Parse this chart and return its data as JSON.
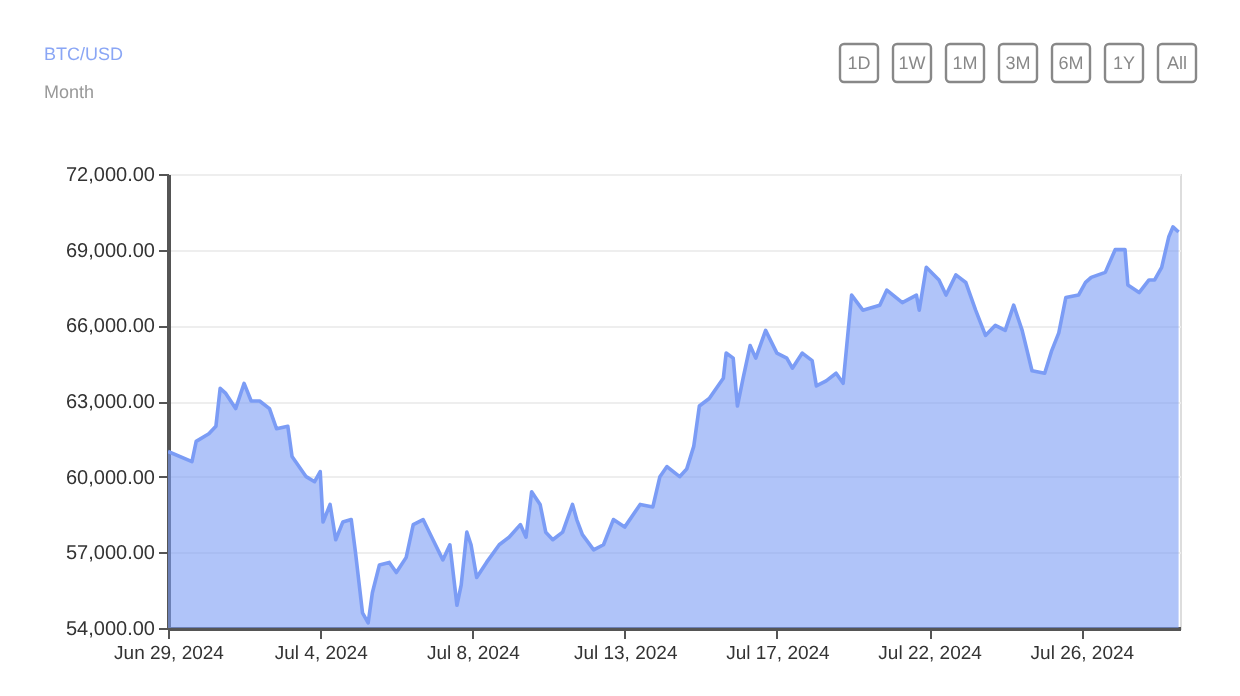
{
  "chart_data": {
    "type": "area",
    "title": "BTC/USD",
    "subtitle": "Month",
    "annotations": [
      "1D",
      "1W",
      "1M",
      "3M",
      "6M",
      "1Y",
      "All"
    ],
    "x": [
      "2024-06-29T12:00",
      "2024-06-30T05:00",
      "2024-06-30T08:00",
      "2024-06-30T17:00",
      "2024-06-30T22:00",
      "2024-07-01T01:00",
      "2024-07-01T05:00",
      "2024-07-01T12:00",
      "2024-07-01T18:00",
      "2024-07-01T23:00",
      "2024-07-02T05:00",
      "2024-07-02T12:00",
      "2024-07-02T17:00",
      "2024-07-03T01:00",
      "2024-07-03T04:00",
      "2024-07-03T14:00",
      "2024-07-03T20:00",
      "2024-07-04T00:00",
      "2024-07-04T02:00",
      "2024-07-04T07:00",
      "2024-07-04T11:00",
      "2024-07-04T16:00",
      "2024-07-04T22:00",
      "2024-07-05T01:00",
      "2024-07-05T06:00",
      "2024-07-05T10:00",
      "2024-07-05T13:00",
      "2024-07-05T18:00",
      "2024-07-06T01:00",
      "2024-07-06T06:00",
      "2024-07-06T13:00",
      "2024-07-06T18:00",
      "2024-07-07T01:00",
      "2024-07-07T08:00",
      "2024-07-07T15:00",
      "2024-07-07T20:00",
      "2024-07-08T01:00",
      "2024-07-08T04:00",
      "2024-07-08T08:00",
      "2024-07-08T11:00",
      "2024-07-08T15:00",
      "2024-07-08T22:00",
      "2024-07-09T07:00",
      "2024-07-09T14:00",
      "2024-07-09T22:00",
      "2024-07-10T02:00",
      "2024-07-10T06:00",
      "2024-07-10T12:00",
      "2024-07-10T16:00",
      "2024-07-10T21:00",
      "2024-07-11T04:00",
      "2024-07-11T11:00",
      "2024-07-11T14:00",
      "2024-07-11T18:00",
      "2024-07-12T02:00",
      "2024-07-12T09:00",
      "2024-07-12T16:00",
      "2024-07-13T00:00",
      "2024-07-13T11:00",
      "2024-07-13T20:00",
      "2024-07-14T01:00",
      "2024-07-14T06:00",
      "2024-07-14T15:00",
      "2024-07-14T20:00",
      "2024-07-15T01:00",
      "2024-07-15T05:00",
      "2024-07-15T12:00",
      "2024-07-15T22:00",
      "2024-07-16T00:00",
      "2024-07-16T05:00",
      "2024-07-16T08:00",
      "2024-07-16T12:00",
      "2024-07-16T17:00",
      "2024-07-16T21:00",
      "2024-07-17T04:00",
      "2024-07-17T12:00",
      "2024-07-17T19:00",
      "2024-07-17T23:00",
      "2024-07-18T06:00",
      "2024-07-18T13:00",
      "2024-07-18T16:00",
      "2024-07-18T23:00",
      "2024-07-19T06:00",
      "2024-07-19T11:00",
      "2024-07-19T17:00",
      "2024-07-20T01:00",
      "2024-07-20T13:00",
      "2024-07-20T18:00",
      "2024-07-21T05:00",
      "2024-07-21T15:00",
      "2024-07-21T17:00",
      "2024-07-21T22:00",
      "2024-07-22T07:00",
      "2024-07-22T12:00",
      "2024-07-22T19:00",
      "2024-07-23T02:00",
      "2024-07-23T09:00",
      "2024-07-23T16:00",
      "2024-07-23T23:00",
      "2024-07-24T06:00",
      "2024-07-24T12:00",
      "2024-07-24T18:00",
      "2024-07-25T01:00",
      "2024-07-25T10:00",
      "2024-07-25T15:00",
      "2024-07-25T20:00",
      "2024-07-26T01:00",
      "2024-07-26T10:00",
      "2024-07-26T15:00",
      "2024-07-26T19:00",
      "2024-07-27T05:00",
      "2024-07-27T12:00",
      "2024-07-27T19:00",
      "2024-07-27T21:00",
      "2024-07-28T05:00",
      "2024-07-28T12:00",
      "2024-07-28T16:00",
      "2024-07-28T21:00",
      "2024-07-29T02:00",
      "2024-07-29T05:00",
      "2024-07-29T09:00"
    ],
    "series": [
      {
        "color": "#7b9cf5",
        "values": [
          61000,
          60600,
          61400,
          61700,
          62000,
          63500,
          63300,
          62700,
          63700,
          63000,
          63000,
          62700,
          61900,
          62000,
          60800,
          60000,
          59800,
          60200,
          58200,
          58900,
          57500,
          58200,
          58300,
          57000,
          54600,
          54200,
          55400,
          56500,
          56600,
          56200,
          56800,
          58100,
          58300,
          57500,
          56700,
          57300,
          54900,
          55700,
          57800,
          57300,
          56000,
          56600,
          57300,
          57600,
          58100,
          57600,
          59400,
          58900,
          57800,
          57500,
          57800,
          58900,
          58300,
          57700,
          57100,
          57300,
          58300,
          58000,
          58900,
          58800,
          60000,
          60400,
          60000,
          60300,
          61200,
          62800,
          63100,
          63900,
          64900,
          64700,
          62800,
          63900,
          65200,
          64700,
          65800,
          64900,
          64700,
          64300,
          64900,
          64600,
          63600,
          63800,
          64100,
          63700,
          67200,
          66600,
          66800,
          67400,
          66900,
          67200,
          66600,
          68300,
          67800,
          67200,
          68000,
          67700,
          66600,
          65600,
          66000,
          65800,
          66800,
          65800,
          64200,
          64100,
          65000,
          65700,
          67100,
          67200,
          67700,
          67900,
          68100,
          69000,
          69000,
          67600,
          67300,
          67800,
          67800,
          68300,
          69500,
          69900,
          69700
        ]
      }
    ],
    "xlim": [
      "2024-06-29T12:00",
      "2024-07-29T10:00"
    ],
    "xticks": [
      {
        "value": "2024-06-29T12:00",
        "label": "Jun 29, 2024"
      },
      {
        "value": "2024-07-04T00:00",
        "label": "Jul 4, 2024"
      },
      {
        "value": "2024-07-08T12:00",
        "label": "Jul 8, 2024"
      },
      {
        "value": "2024-07-13T00:00",
        "label": "Jul 13, 2024"
      },
      {
        "value": "2024-07-17T12:00",
        "label": "Jul 17, 2024"
      },
      {
        "value": "2024-07-22T00:00",
        "label": "Jul 22, 2024"
      },
      {
        "value": "2024-07-26T12:00",
        "label": "Jul 26, 2024"
      }
    ],
    "ylim": [
      54000,
      72000
    ],
    "yticks": [
      {
        "value": 54000,
        "label": "54,000.00"
      },
      {
        "value": 57000,
        "label": "57,000.00"
      },
      {
        "value": 60000,
        "label": "60,000.00"
      },
      {
        "value": 63000,
        "label": "63,000.00"
      },
      {
        "value": 66000,
        "label": "66,000.00"
      },
      {
        "value": 69000,
        "label": "69,000.00"
      },
      {
        "value": 72000,
        "label": "72,000.00"
      }
    ],
    "grid": "y",
    "marker": "none",
    "line_style": "solid"
  }
}
